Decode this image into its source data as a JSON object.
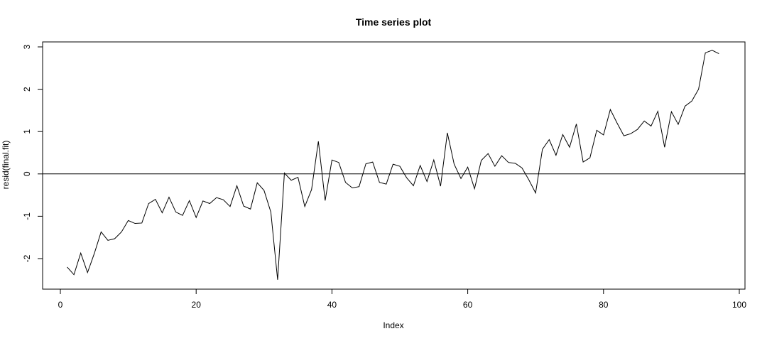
{
  "chart_data": {
    "type": "line",
    "title": "Time series plot",
    "xlabel": "Index",
    "ylabel": "resid(final.fit)",
    "xlim": [
      0,
      100
    ],
    "ylim": [
      -2.5,
      3
    ],
    "x_ticks": [
      0,
      20,
      40,
      60,
      80,
      100
    ],
    "y_ticks": [
      -2,
      -1,
      0,
      1,
      2,
      3
    ],
    "hline": 0,
    "grid": false,
    "line_color": "#000000",
    "series": [
      {
        "x": [
          1,
          2,
          3,
          4,
          5,
          6,
          7,
          8,
          9,
          10,
          11,
          12,
          13,
          14,
          15,
          16,
          17,
          18,
          19,
          20,
          21,
          22,
          23,
          24,
          25,
          26,
          27,
          28,
          29,
          30,
          31,
          32,
          33,
          34,
          35,
          36,
          37,
          38,
          39,
          40,
          41,
          42,
          43,
          44,
          45,
          46,
          47,
          48,
          49,
          50,
          51,
          52,
          53,
          54,
          55,
          56,
          57,
          58,
          59,
          60,
          61,
          62,
          63,
          64,
          65,
          66,
          67,
          68,
          69,
          70,
          71,
          72,
          73,
          74,
          75,
          76,
          77,
          78,
          79,
          80,
          81,
          82,
          83,
          84,
          85,
          86,
          87,
          88,
          89,
          90,
          91,
          92,
          93,
          94,
          95,
          96,
          97
        ],
        "values": [
          -2.2,
          -2.38,
          -1.87,
          -2.33,
          -1.88,
          -1.37,
          -1.57,
          -1.53,
          -1.37,
          -1.1,
          -1.17,
          -1.16,
          -0.7,
          -0.6,
          -0.92,
          -0.55,
          -0.9,
          -0.98,
          -0.63,
          -1.03,
          -0.64,
          -0.7,
          -0.56,
          -0.61,
          -0.77,
          -0.28,
          -0.76,
          -0.83,
          -0.21,
          -0.39,
          -0.9,
          -2.5,
          0.02,
          -0.15,
          -0.08,
          -0.77,
          -0.37,
          0.77,
          -0.63,
          0.33,
          0.27,
          -0.2,
          -0.33,
          -0.3,
          0.24,
          0.28,
          -0.2,
          -0.24,
          0.23,
          0.18,
          -0.09,
          -0.28,
          0.2,
          -0.18,
          0.33,
          -0.29,
          0.97,
          0.23,
          -0.11,
          0.16,
          -0.35,
          0.32,
          0.48,
          0.18,
          0.43,
          0.27,
          0.25,
          0.14,
          -0.14,
          -0.45,
          0.58,
          0.81,
          0.44,
          0.93,
          0.63,
          1.18,
          0.28,
          0.38,
          1.03,
          0.92,
          1.52,
          1.2,
          0.9,
          0.95,
          1.05,
          1.25,
          1.13,
          1.48,
          0.63,
          1.47,
          1.17,
          1.6,
          1.72,
          2.0,
          2.86,
          2.92,
          2.84
        ]
      }
    ]
  }
}
